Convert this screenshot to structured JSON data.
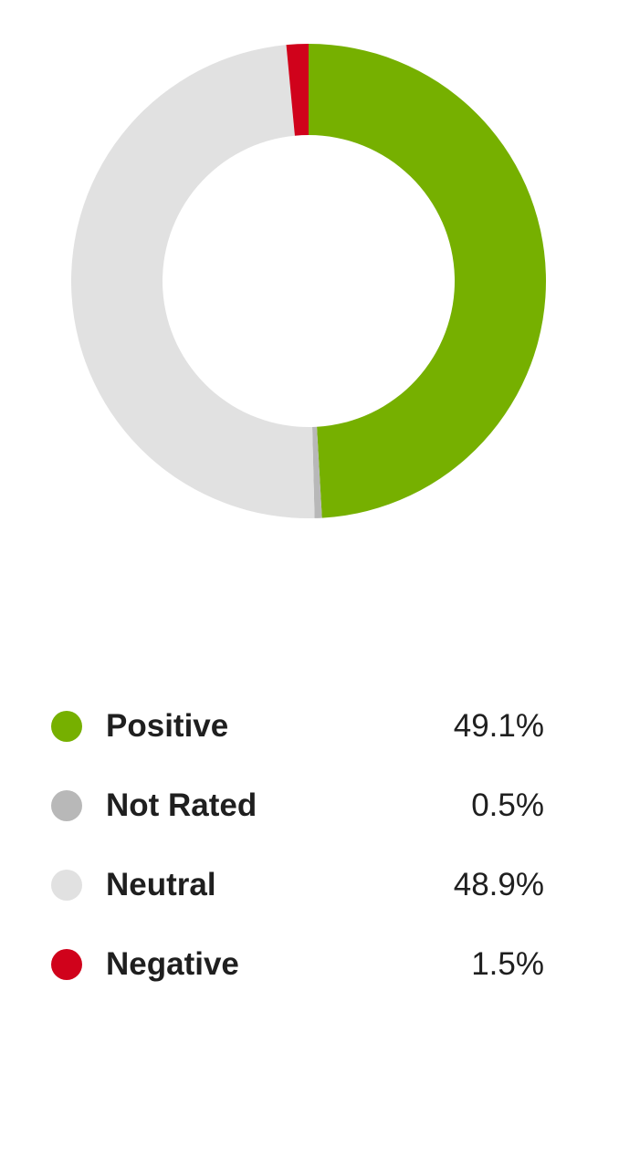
{
  "chart_data": {
    "type": "pie",
    "title": "",
    "donut": true,
    "start_angle_deg": 0,
    "direction": "clockwise",
    "slices": [
      {
        "label": "Positive",
        "value": 49.1,
        "value_label": "49.1%",
        "color": "#76b000"
      },
      {
        "label": "Not Rated",
        "value": 0.5,
        "value_label": "0.5%",
        "color": "#b8b8b8"
      },
      {
        "label": "Neutral",
        "value": 48.9,
        "value_label": "48.9%",
        "color": "#e1e1e1"
      },
      {
        "label": "Negative",
        "value": 1.5,
        "value_label": "1.5%",
        "color": "#d0021b"
      }
    ],
    "legend_position": "bottom"
  }
}
